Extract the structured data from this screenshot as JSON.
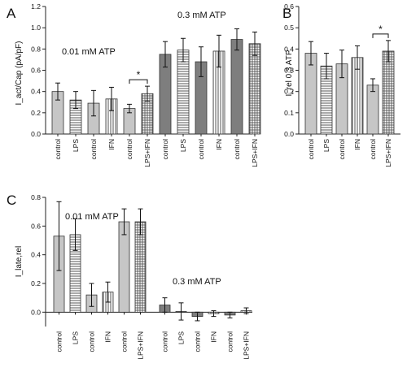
{
  "chart_data": [
    {
      "panel": "A",
      "type": "bar",
      "ylabel": "I_act/Cap (pA/pF)",
      "ylim": [
        0,
        1.2
      ],
      "yticks": [
        "0.0",
        "0.2",
        "0.4",
        "0.6",
        "0.8",
        "1.0",
        "1.2"
      ],
      "grid": false,
      "groups": [
        {
          "label": "0.01 mM ATP",
          "categories": [
            "control",
            "LPS",
            "control",
            "IFN",
            "control",
            "LPS+IFN"
          ],
          "values": [
            0.4,
            0.32,
            0.29,
            0.33,
            0.24,
            0.38
          ],
          "errors": [
            0.08,
            0.08,
            0.12,
            0.11,
            0.04,
            0.07
          ],
          "fills": [
            "solid",
            "hstripe",
            "solid",
            "vstripe",
            "solid",
            "grid"
          ],
          "color": "#c6c6c6",
          "significance": {
            "label": "*",
            "between": [
              4,
              5
            ]
          }
        },
        {
          "label": "0.3 mM ATP",
          "categories": [
            "control",
            "LPS",
            "control",
            "IFN",
            "control",
            "LPS+IFN"
          ],
          "values": [
            0.75,
            0.79,
            0.68,
            0.78,
            0.89,
            0.85
          ],
          "errors": [
            0.12,
            0.11,
            0.14,
            0.15,
            0.1,
            0.11
          ],
          "fills": [
            "solid",
            "hstripe",
            "solid",
            "vstripe",
            "solid",
            "grid"
          ],
          "color": "#7e7e7e"
        }
      ]
    },
    {
      "panel": "B",
      "type": "bar",
      "ylabel": "I_rel 0.3 ATP",
      "ylim": [
        0,
        0.6
      ],
      "yticks": [
        "0.0",
        "0.1",
        "0.2",
        "0.3",
        "0.4",
        "0.5",
        "0.6"
      ],
      "grid": false,
      "groups": [
        {
          "label": "",
          "categories": [
            "control",
            "LPS",
            "control",
            "IFN",
            "control",
            "LPS+IFN"
          ],
          "values": [
            0.38,
            0.32,
            0.33,
            0.36,
            0.23,
            0.39
          ],
          "errors": [
            0.055,
            0.06,
            0.065,
            0.055,
            0.03,
            0.05
          ],
          "fills": [
            "solid",
            "hstripe",
            "solid",
            "vstripe",
            "solid",
            "grid"
          ],
          "color": "#c6c6c6",
          "significance": {
            "label": "*",
            "between": [
              4,
              5
            ]
          }
        }
      ]
    },
    {
      "panel": "C",
      "type": "bar",
      "ylabel": "I_late,rel",
      "ylim": [
        -0.1,
        0.8
      ],
      "yticks": [
        "0.0",
        "0.2",
        "0.4",
        "0.6",
        "0.8"
      ],
      "grid": false,
      "groups": [
        {
          "label": "0.01 mM ATP",
          "categories": [
            "control",
            "LPS",
            "control",
            "IFN",
            "control",
            "LPS+IFN"
          ],
          "values": [
            0.53,
            0.54,
            0.12,
            0.14,
            0.63,
            0.63
          ],
          "errors": [
            0.24,
            0.11,
            0.08,
            0.07,
            0.09,
            0.09
          ],
          "fills": [
            "solid",
            "hstripe",
            "solid",
            "vstripe",
            "solid",
            "grid"
          ],
          "color": "#c6c6c6"
        },
        {
          "label": "0.3 mM ATP",
          "categories": [
            "control",
            "LPS",
            "control",
            "IFN",
            "control",
            "LPS+IFN"
          ],
          "values": [
            0.05,
            0.005,
            -0.03,
            -0.01,
            -0.02,
            0.01
          ],
          "errors": [
            0.05,
            0.06,
            0.03,
            0.02,
            0.02,
            0.02
          ],
          "fills": [
            "solid",
            "hstripe",
            "solid",
            "vstripe",
            "solid",
            "grid"
          ],
          "color": "#7e7e7e"
        }
      ]
    }
  ]
}
